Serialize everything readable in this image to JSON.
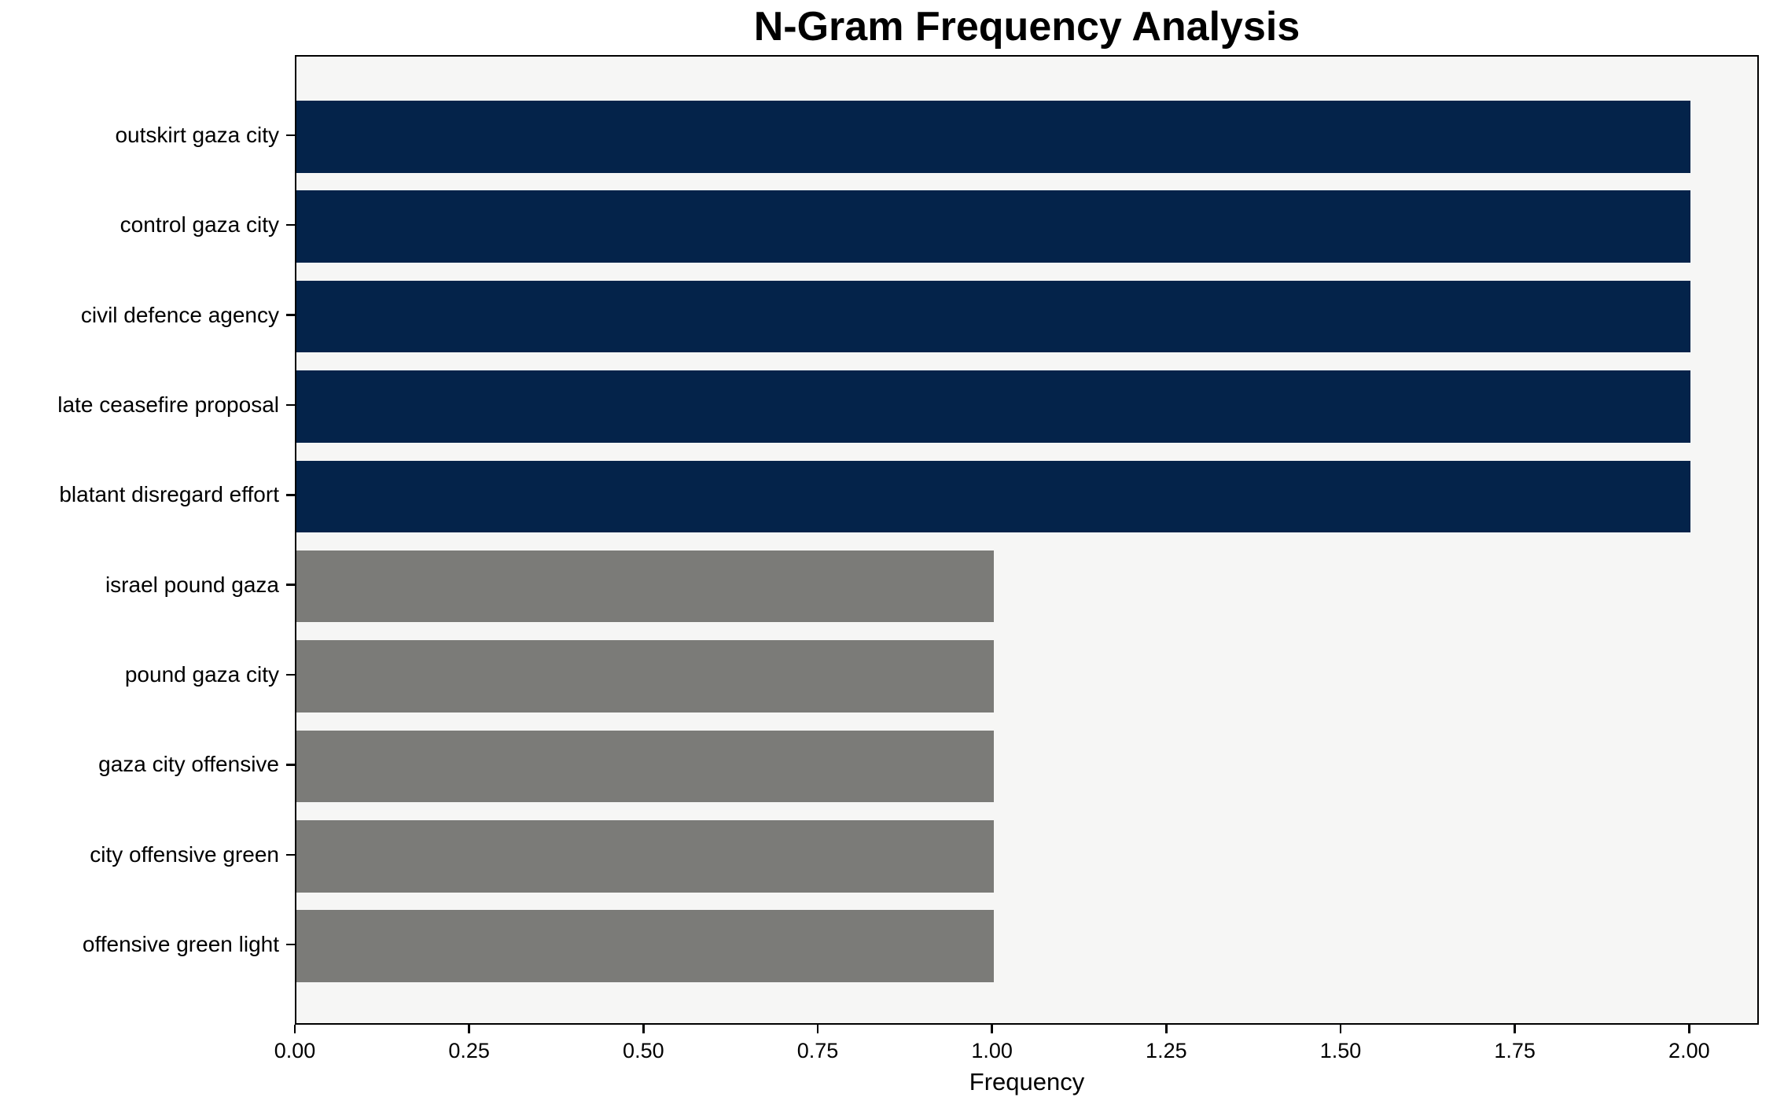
{
  "chart_data": {
    "type": "bar",
    "orientation": "horizontal",
    "title": "N-Gram Frequency Analysis",
    "xlabel": "Frequency",
    "ylabel": "",
    "categories": [
      "outskirt gaza city",
      "control gaza city",
      "civil defence agency",
      "late ceasefire proposal",
      "blatant disregard effort",
      "israel pound gaza",
      "pound gaza city",
      "gaza city offensive",
      "city offensive green",
      "offensive green light"
    ],
    "values": [
      2,
      2,
      2,
      2,
      2,
      1,
      1,
      1,
      1,
      1
    ],
    "bar_colors": [
      "#04234a",
      "#04234a",
      "#04234a",
      "#04234a",
      "#04234a",
      "#7b7b78",
      "#7b7b78",
      "#7b7b78",
      "#7b7b78",
      "#7b7b78"
    ],
    "xlim": [
      0,
      2.1
    ],
    "xtick_values": [
      0,
      0.25,
      0.5,
      0.75,
      1.0,
      1.25,
      1.5,
      1.75,
      2.0
    ],
    "xtick_labels": [
      "0.00",
      "0.25",
      "0.50",
      "0.75",
      "1.00",
      "1.25",
      "1.50",
      "1.75",
      "2.00"
    ],
    "bar_fraction": 0.8,
    "grid": false,
    "legend": null,
    "colors": {
      "navy": "#04234a",
      "gray": "#7b7b78",
      "plot_background": "#f6f6f5",
      "figure_background": "#ffffff",
      "spine": "#000000",
      "text": "#000000"
    }
  }
}
